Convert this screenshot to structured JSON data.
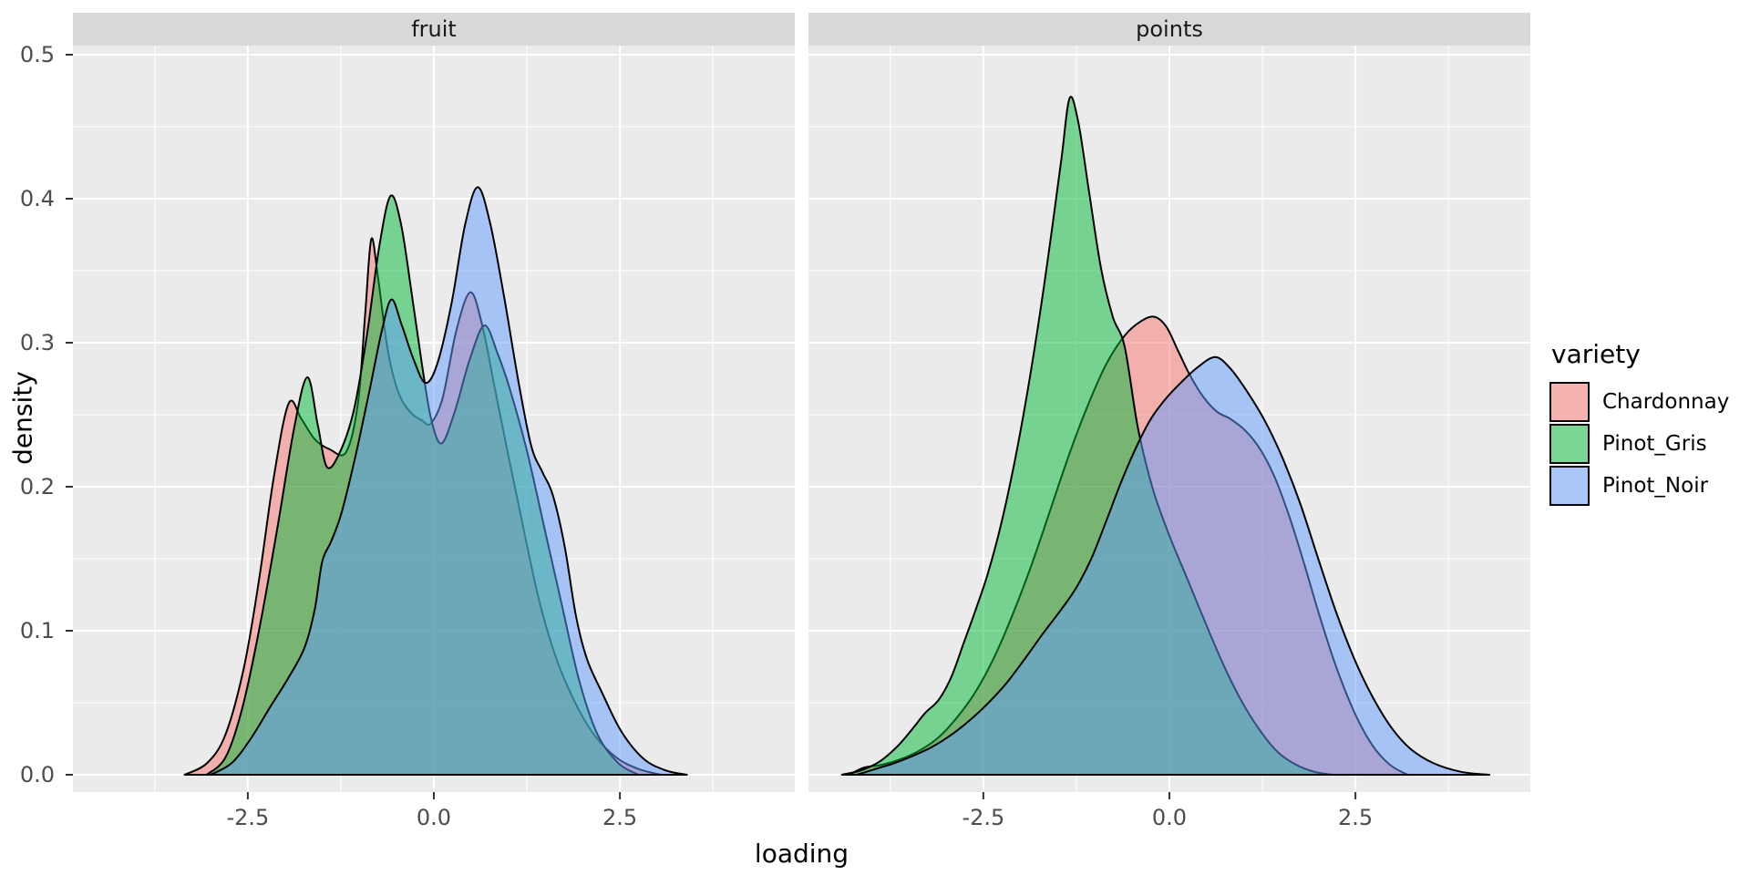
{
  "figure": {
    "background": "#FFFFFF",
    "panel_background": "#EBEBEB",
    "grid_color": "#FFFFFF",
    "strip_background": "#D9D9D9",
    "tick_color": "#333333",
    "axis_text_color": "#4D4D4D",
    "outline_color": "#000000",
    "fill_alpha": 0.5
  },
  "facets": [
    {
      "label": "fruit"
    },
    {
      "label": "points"
    }
  ],
  "x_axis": {
    "title": "loading",
    "range": {
      "min": -4.85,
      "max": 4.85
    },
    "ticks": [
      {
        "label": "-2.5",
        "value": -2.5
      },
      {
        "label": "0.0",
        "value": 0.0
      },
      {
        "label": "2.5",
        "value": 2.5
      }
    ],
    "minor": [
      -3.75,
      -1.25,
      1.25,
      3.75
    ]
  },
  "y_axis": {
    "title": "density",
    "range": {
      "min": -0.0127,
      "max": 0.5063
    },
    "ticks": [
      {
        "label": "0.0",
        "value": 0.0
      },
      {
        "label": "0.1",
        "value": 0.1
      },
      {
        "label": "0.2",
        "value": 0.2
      },
      {
        "label": "0.3",
        "value": 0.3
      },
      {
        "label": "0.4",
        "value": 0.4
      },
      {
        "label": "0.5",
        "value": 0.5
      }
    ],
    "minor": [
      0.05,
      0.15,
      0.25,
      0.35,
      0.45
    ]
  },
  "legend": {
    "title": "variety",
    "entries": [
      {
        "label": "Chardonnay",
        "color": "#F8766D"
      },
      {
        "label": "Pinot_Gris",
        "color": "#00BA38"
      },
      {
        "label": "Pinot_Noir",
        "color": "#619CFF"
      }
    ]
  },
  "chart_data": {
    "type": "area",
    "subtype": "density",
    "xlabel": "loading",
    "ylabel": "density",
    "legend_position": "right",
    "grid": true,
    "facet_labels": [
      "fruit",
      "points"
    ],
    "series": [
      {
        "facet": "fruit",
        "name": "Chardonnay",
        "color": "#F8766D",
        "points": [
          [
            -3.35,
            0
          ],
          [
            -3.05,
            0.008
          ],
          [
            -2.8,
            0.028
          ],
          [
            -2.55,
            0.075
          ],
          [
            -2.35,
            0.135
          ],
          [
            -2.15,
            0.207
          ],
          [
            -1.95,
            0.258
          ],
          [
            -1.78,
            0.247
          ],
          [
            -1.6,
            0.233
          ],
          [
            -1.4,
            0.226
          ],
          [
            -1.18,
            0.224
          ],
          [
            -1.02,
            0.258
          ],
          [
            -0.92,
            0.322
          ],
          [
            -0.84,
            0.372
          ],
          [
            -0.75,
            0.345
          ],
          [
            -0.62,
            0.295
          ],
          [
            -0.48,
            0.266
          ],
          [
            -0.32,
            0.252
          ],
          [
            -0.16,
            0.246
          ],
          [
            -0.04,
            0.244
          ],
          [
            0.12,
            0.262
          ],
          [
            0.3,
            0.308
          ],
          [
            0.49,
            0.335
          ],
          [
            0.65,
            0.312
          ],
          [
            0.82,
            0.268
          ],
          [
            1.0,
            0.222
          ],
          [
            1.2,
            0.172
          ],
          [
            1.42,
            0.12
          ],
          [
            1.65,
            0.08
          ],
          [
            1.9,
            0.05
          ],
          [
            2.15,
            0.028
          ],
          [
            2.45,
            0.012
          ],
          [
            2.75,
            0.004
          ],
          [
            3.05,
            0
          ]
        ]
      },
      {
        "facet": "fruit",
        "name": "Pinot_Gris",
        "color": "#00BA38",
        "points": [
          [
            -3.05,
            0
          ],
          [
            -2.8,
            0.012
          ],
          [
            -2.58,
            0.045
          ],
          [
            -2.35,
            0.1
          ],
          [
            -2.1,
            0.172
          ],
          [
            -1.88,
            0.24
          ],
          [
            -1.7,
            0.276
          ],
          [
            -1.56,
            0.243
          ],
          [
            -1.44,
            0.214
          ],
          [
            -1.28,
            0.222
          ],
          [
            -1.08,
            0.252
          ],
          [
            -0.9,
            0.305
          ],
          [
            -0.73,
            0.368
          ],
          [
            -0.58,
            0.402
          ],
          [
            -0.44,
            0.382
          ],
          [
            -0.3,
            0.335
          ],
          [
            -0.16,
            0.285
          ],
          [
            -0.04,
            0.248
          ],
          [
            0.1,
            0.23
          ],
          [
            0.28,
            0.252
          ],
          [
            0.48,
            0.288
          ],
          [
            0.68,
            0.312
          ],
          [
            0.86,
            0.292
          ],
          [
            1.02,
            0.268
          ],
          [
            1.25,
            0.225
          ],
          [
            1.5,
            0.168
          ],
          [
            1.72,
            0.118
          ],
          [
            1.95,
            0.066
          ],
          [
            2.2,
            0.028
          ],
          [
            2.48,
            0.008
          ],
          [
            2.75,
            0
          ]
        ]
      },
      {
        "facet": "fruit",
        "name": "Pinot_Noir",
        "color": "#619CFF",
        "points": [
          [
            -3.0,
            0
          ],
          [
            -2.72,
            0.008
          ],
          [
            -2.46,
            0.025
          ],
          [
            -2.2,
            0.047
          ],
          [
            -1.97,
            0.066
          ],
          [
            -1.74,
            0.088
          ],
          [
            -1.6,
            0.115
          ],
          [
            -1.5,
            0.148
          ],
          [
            -1.38,
            0.162
          ],
          [
            -1.24,
            0.182
          ],
          [
            -1.05,
            0.222
          ],
          [
            -0.86,
            0.268
          ],
          [
            -0.7,
            0.308
          ],
          [
            -0.57,
            0.33
          ],
          [
            -0.43,
            0.312
          ],
          [
            -0.27,
            0.288
          ],
          [
            -0.11,
            0.272
          ],
          [
            0.05,
            0.286
          ],
          [
            0.24,
            0.328
          ],
          [
            0.42,
            0.382
          ],
          [
            0.59,
            0.408
          ],
          [
            0.76,
            0.382
          ],
          [
            0.95,
            0.33
          ],
          [
            1.14,
            0.272
          ],
          [
            1.31,
            0.228
          ],
          [
            1.46,
            0.21
          ],
          [
            1.6,
            0.194
          ],
          [
            1.76,
            0.158
          ],
          [
            1.91,
            0.11
          ],
          [
            2.06,
            0.08
          ],
          [
            2.26,
            0.057
          ],
          [
            2.52,
            0.03
          ],
          [
            2.82,
            0.011
          ],
          [
            3.12,
            0.003
          ],
          [
            3.4,
            0
          ]
        ]
      },
      {
        "facet": "points",
        "name": "Chardonnay",
        "color": "#F8766D",
        "points": [
          [
            -4.3,
            0
          ],
          [
            -4.1,
            0.005
          ],
          [
            -3.85,
            0.007
          ],
          [
            -3.6,
            0.011
          ],
          [
            -3.35,
            0.017
          ],
          [
            -3.1,
            0.026
          ],
          [
            -2.85,
            0.04
          ],
          [
            -2.6,
            0.058
          ],
          [
            -2.35,
            0.082
          ],
          [
            -2.1,
            0.112
          ],
          [
            -1.85,
            0.146
          ],
          [
            -1.6,
            0.184
          ],
          [
            -1.35,
            0.222
          ],
          [
            -1.1,
            0.256
          ],
          [
            -0.85,
            0.285
          ],
          [
            -0.6,
            0.305
          ],
          [
            -0.38,
            0.315
          ],
          [
            -0.2,
            0.318
          ],
          [
            -0.04,
            0.311
          ],
          [
            0.12,
            0.294
          ],
          [
            0.28,
            0.277
          ],
          [
            0.46,
            0.262
          ],
          [
            0.64,
            0.252
          ],
          [
            0.82,
            0.247
          ],
          [
            1.02,
            0.239
          ],
          [
            1.22,
            0.226
          ],
          [
            1.42,
            0.206
          ],
          [
            1.62,
            0.178
          ],
          [
            1.82,
            0.145
          ],
          [
            2.02,
            0.11
          ],
          [
            2.24,
            0.075
          ],
          [
            2.48,
            0.044
          ],
          [
            2.72,
            0.021
          ],
          [
            2.96,
            0.007
          ],
          [
            3.2,
            0
          ]
        ]
      },
      {
        "facet": "points",
        "name": "Pinot_Gris",
        "color": "#00BA38",
        "points": [
          [
            -4.4,
            0
          ],
          [
            -4.15,
            0.003
          ],
          [
            -3.9,
            0.009
          ],
          [
            -3.65,
            0.02
          ],
          [
            -3.45,
            0.032
          ],
          [
            -3.28,
            0.043
          ],
          [
            -3.1,
            0.052
          ],
          [
            -2.93,
            0.068
          ],
          [
            -2.76,
            0.092
          ],
          [
            -2.6,
            0.115
          ],
          [
            -2.45,
            0.138
          ],
          [
            -2.28,
            0.17
          ],
          [
            -2.1,
            0.212
          ],
          [
            -1.92,
            0.262
          ],
          [
            -1.74,
            0.32
          ],
          [
            -1.58,
            0.378
          ],
          [
            -1.45,
            0.428
          ],
          [
            -1.34,
            0.47
          ],
          [
            -1.22,
            0.452
          ],
          [
            -1.08,
            0.405
          ],
          [
            -0.92,
            0.352
          ],
          [
            -0.76,
            0.318
          ],
          [
            -0.6,
            0.297
          ],
          [
            -0.42,
            0.24
          ],
          [
            -0.22,
            0.198
          ],
          [
            0.0,
            0.166
          ],
          [
            0.24,
            0.136
          ],
          [
            0.48,
            0.106
          ],
          [
            0.72,
            0.077
          ],
          [
            0.96,
            0.052
          ],
          [
            1.2,
            0.032
          ],
          [
            1.45,
            0.016
          ],
          [
            1.7,
            0.007
          ],
          [
            1.95,
            0.002
          ],
          [
            2.2,
            0
          ]
        ]
      },
      {
        "facet": "points",
        "name": "Pinot_Noir",
        "color": "#619CFF",
        "points": [
          [
            -4.2,
            0
          ],
          [
            -3.95,
            0.004
          ],
          [
            -3.7,
            0.008
          ],
          [
            -3.45,
            0.013
          ],
          [
            -3.2,
            0.019
          ],
          [
            -2.95,
            0.027
          ],
          [
            -2.7,
            0.037
          ],
          [
            -2.45,
            0.049
          ],
          [
            -2.2,
            0.063
          ],
          [
            -1.95,
            0.08
          ],
          [
            -1.7,
            0.098
          ],
          [
            -1.45,
            0.115
          ],
          [
            -1.25,
            0.13
          ],
          [
            -1.05,
            0.15
          ],
          [
            -0.85,
            0.176
          ],
          [
            -0.65,
            0.203
          ],
          [
            -0.45,
            0.227
          ],
          [
            -0.25,
            0.247
          ],
          [
            -0.05,
            0.261
          ],
          [
            0.15,
            0.272
          ],
          [
            0.38,
            0.283
          ],
          [
            0.62,
            0.29
          ],
          [
            0.82,
            0.282
          ],
          [
            1.02,
            0.268
          ],
          [
            1.28,
            0.246
          ],
          [
            1.52,
            0.22
          ],
          [
            1.76,
            0.188
          ],
          [
            2.0,
            0.15
          ],
          [
            2.24,
            0.113
          ],
          [
            2.48,
            0.081
          ],
          [
            2.72,
            0.055
          ],
          [
            2.98,
            0.033
          ],
          [
            3.24,
            0.018
          ],
          [
            3.55,
            0.008
          ],
          [
            3.92,
            0.002
          ],
          [
            4.3,
            0
          ]
        ]
      }
    ]
  }
}
